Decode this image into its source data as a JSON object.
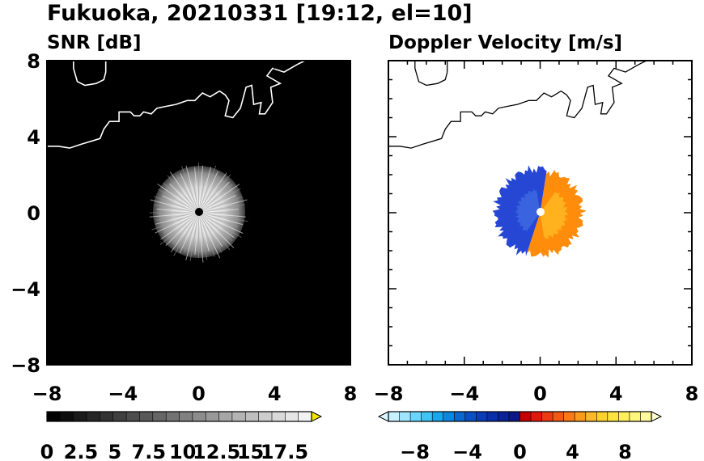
{
  "figure": {
    "title": "Fukuoka, 20210331 [19:12, el=10]"
  },
  "chart_data": [
    {
      "type": "heatmap",
      "title": "SNR [dB]",
      "xlim": [
        -8,
        8
      ],
      "ylim": [
        -8,
        8
      ],
      "x_ticks": [
        "−8",
        "−4",
        "0",
        "4",
        "8"
      ],
      "y_ticks": [
        "8",
        "4",
        "0",
        "−4",
        "−8"
      ],
      "background_color": "#000000",
      "echo_radius": 2.3,
      "echo_color": "#d9d9d9",
      "center_marker": [
        0,
        0
      ],
      "coastline_color": "#ffffff",
      "colorbar": {
        "labels": [
          "0",
          "2.5",
          "5",
          "7.5",
          "10",
          "12.5",
          "15",
          "17.5"
        ],
        "range": [
          0,
          19.5
        ],
        "extend": "max",
        "extend_color": "#f2e600",
        "colors": [
          "#000000",
          "#0d0d0d",
          "#1a1a1a",
          "#262626",
          "#333333",
          "#404040",
          "#4d4d4d",
          "#595959",
          "#666666",
          "#737373",
          "#808080",
          "#8c8c8c",
          "#999999",
          "#a6a6a6",
          "#b3b3b3",
          "#bfbfbf",
          "#cccccc",
          "#d9d9d9",
          "#e6e6e6",
          "#f2f2f2"
        ]
      }
    },
    {
      "type": "heatmap",
      "title": "Doppler Velocity [m/s]",
      "xlim": [
        -8,
        8
      ],
      "ylim": [
        -8,
        8
      ],
      "x_ticks": [
        "−8",
        "−4",
        "0",
        "4",
        "8"
      ],
      "echo_radius": 2.3,
      "negative_colors": [
        "#1d3ccf",
        "#2648d6",
        "#3355dd"
      ],
      "positive_colors": [
        "#ff7a00",
        "#ff9500",
        "#ffb020"
      ],
      "center_marker": [
        0,
        0
      ],
      "coastline_color": "#000000",
      "colorbar": {
        "labels": [
          "−8",
          "−4",
          "0",
          "4",
          "8"
        ],
        "range": [
          -10,
          10
        ],
        "extend": "both",
        "extend_colors": [
          "#d8f7ff",
          "#ffffd0"
        ],
        "colors": [
          "#c6f0ff",
          "#9ee6ff",
          "#6ad6ff",
          "#3ec4f5",
          "#1aa6ea",
          "#0e86dc",
          "#0a68cf",
          "#0a4fc4",
          "#0a3cb8",
          "#0a2ea8",
          "#0a2298",
          "#0a1888",
          "#c40000",
          "#e0180a",
          "#ee3a10",
          "#f25a14",
          "#f67a18",
          "#fa9a1c",
          "#fcba24",
          "#fdd22e",
          "#fee43c",
          "#fef05a",
          "#fff67a",
          "#fffa9c"
        ]
      }
    }
  ],
  "coastline": [
    [
      -10,
      3.5
    ],
    [
      -8,
      3.5
    ],
    [
      -7.4,
      3.5
    ],
    [
      -6.8,
      3.4
    ],
    [
      -6.2,
      3.6
    ],
    [
      -5.2,
      3.9
    ],
    [
      -5.0,
      4.4
    ],
    [
      -4.7,
      4.8
    ],
    [
      -4.2,
      4.8
    ],
    [
      -4.2,
      5.3
    ],
    [
      -3.6,
      5.3
    ],
    [
      -3.4,
      5.1
    ],
    [
      -3.1,
      5.1
    ],
    [
      -2.9,
      5.3
    ],
    [
      -2.5,
      5.2
    ],
    [
      -2.2,
      5.5
    ],
    [
      -1.7,
      5.6
    ],
    [
      -1.2,
      5.7
    ],
    [
      -0.6,
      5.9
    ],
    [
      -0.2,
      5.9
    ],
    [
      0.2,
      6.3
    ],
    [
      0.6,
      6.1
    ],
    [
      1.1,
      6.4
    ],
    [
      1.4,
      6.2
    ],
    [
      1.6,
      5.9
    ],
    [
      1.4,
      5.1
    ],
    [
      1.8,
      5.0
    ],
    [
      2.2,
      5.5
    ],
    [
      2.5,
      6.6
    ],
    [
      2.8,
      6.7
    ],
    [
      2.9,
      5.7
    ],
    [
      3.3,
      5.8
    ],
    [
      3.2,
      5.2
    ],
    [
      3.5,
      5.2
    ],
    [
      3.9,
      5.8
    ],
    [
      3.8,
      6.6
    ],
    [
      4.3,
      6.8
    ],
    [
      3.6,
      7.2
    ],
    [
      3.9,
      7.6
    ],
    [
      4.5,
      7.4
    ],
    [
      5.2,
      7.8
    ],
    [
      5.6,
      8.0
    ],
    [
      5.8,
      8.5
    ]
  ],
  "island": [
    [
      -6.6,
      8.3
    ],
    [
      -6.6,
      7.6
    ],
    [
      -6.4,
      6.9
    ],
    [
      -6.0,
      6.7
    ],
    [
      -5.4,
      6.8
    ],
    [
      -5.0,
      7.0
    ],
    [
      -4.9,
      7.4
    ],
    [
      -4.9,
      8.3
    ]
  ]
}
